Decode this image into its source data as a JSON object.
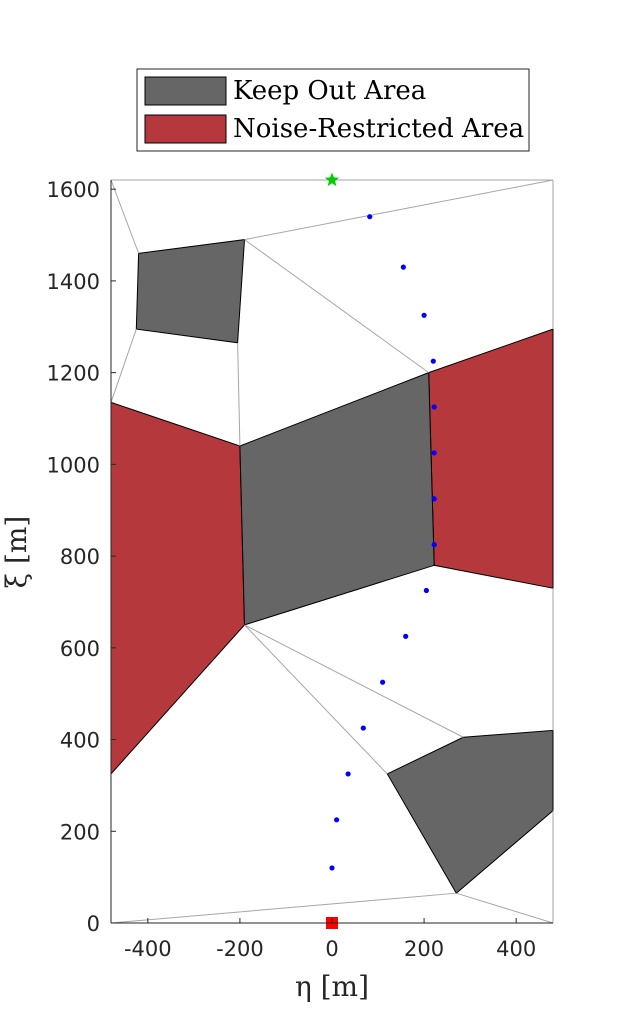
{
  "chart_data": {
    "type": "scatter",
    "xlabel": "η [m]",
    "ylabel": "ξ [m]",
    "xlim": [
      -480,
      480
    ],
    "ylim": [
      0,
      1620
    ],
    "xticks": [
      -400,
      -200,
      0,
      200,
      400
    ],
    "yticks": [
      0,
      200,
      400,
      600,
      800,
      1000,
      1200,
      1400,
      1600
    ],
    "xtick_labels": [
      "-400",
      "-200",
      "0",
      "200",
      "400"
    ],
    "ytick_labels": [
      "0",
      "200",
      "400",
      "600",
      "800",
      "1000",
      "1200",
      "1400",
      "1600"
    ],
    "grid": false,
    "legend": {
      "position": "top",
      "entries": [
        {
          "label": "Keep Out Area",
          "color": "#666666"
        },
        {
          "label": "Noise-Restricted Area",
          "color": "#b5393c"
        }
      ]
    },
    "keep_out_areas": [
      [
        [
          -420,
          1460
        ],
        [
          -190,
          1490
        ],
        [
          -205,
          1265
        ],
        [
          -425,
          1295
        ]
      ],
      [
        [
          -200,
          1040
        ],
        [
          210,
          1200
        ],
        [
          222,
          780
        ],
        [
          -190,
          650
        ]
      ],
      [
        [
          120,
          325
        ],
        [
          285,
          405
        ],
        [
          480,
          420
        ],
        [
          480,
          245
        ],
        [
          270,
          65
        ]
      ]
    ],
    "noise_restricted_areas": [
      [
        [
          -480,
          1135
        ],
        [
          -200,
          1040
        ],
        [
          -190,
          650
        ],
        [
          -480,
          325
        ]
      ],
      [
        [
          210,
          1200
        ],
        [
          480,
          1295
        ],
        [
          480,
          730
        ],
        [
          222,
          780
        ]
      ]
    ],
    "mesh_edges": [
      [
        [
          -480,
          0
        ],
        [
          270,
          65
        ]
      ],
      [
        [
          270,
          65
        ],
        [
          480,
          0
        ]
      ],
      [
        [
          -480,
          1620
        ],
        [
          -420,
          1460
        ]
      ],
      [
        [
          -480,
          1135
        ],
        [
          -425,
          1295
        ]
      ],
      [
        [
          -190,
          1490
        ],
        [
          480,
          1620
        ]
      ],
      [
        [
          -190,
          1490
        ],
        [
          210,
          1200
        ]
      ],
      [
        [
          -200,
          1040
        ],
        [
          -205,
          1265
        ]
      ],
      [
        [
          -190,
          650
        ],
        [
          120,
          325
        ]
      ],
      [
        [
          -190,
          650
        ],
        [
          285,
          405
        ]
      ],
      [
        [
          480,
          1620
        ],
        [
          480,
          1295
        ]
      ],
      [
        [
          480,
          730
        ],
        [
          480,
          420
        ]
      ],
      [
        [
          480,
          245
        ],
        [
          480,
          0
        ]
      ],
      [
        [
          -480,
          325
        ],
        [
          -480,
          0
        ]
      ],
      [
        [
          -480,
          1620
        ],
        [
          480,
          1620
        ]
      ]
    ],
    "trajectory": {
      "x": [
        0,
        10,
        35,
        68,
        110,
        160,
        205,
        222,
        222,
        222,
        222,
        220,
        200,
        155,
        82
      ],
      "y": [
        120,
        225,
        325,
        425,
        525,
        625,
        725,
        825,
        925,
        1025,
        1125,
        1225,
        1325,
        1430,
        1540
      ],
      "color": "#0000ff"
    },
    "start": {
      "x": 0,
      "y": 0,
      "marker": "square",
      "color": "#ff0000"
    },
    "goal": {
      "x": 0,
      "y": 1620,
      "marker": "star",
      "color": "#00cc00"
    }
  }
}
